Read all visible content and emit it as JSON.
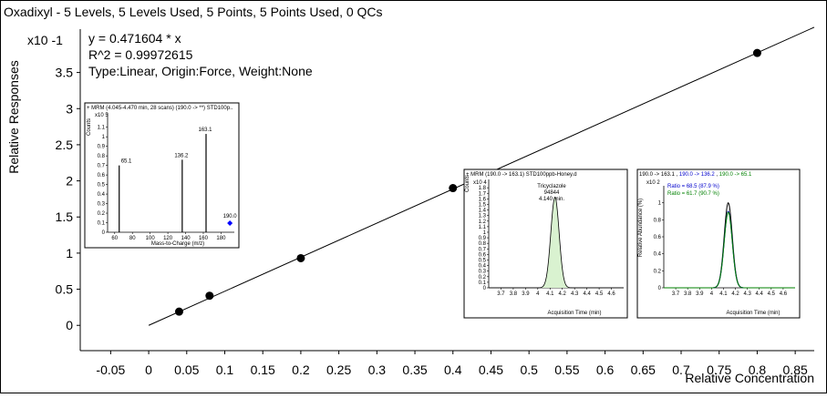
{
  "title": "Oxadixyl - 5 Levels, 5 Levels Used, 5 Points, 5 Points Used, 0 QCs",
  "equation": "y = 0.471604 * x",
  "r2": "R^2 = 0.99972615",
  "fit_type": "Type:Linear, Origin:Force, Weight:None",
  "colors": {
    "inset_green_fill": "#d9f2d0",
    "ratio_blue": "#0000cc",
    "ratio_green": "#008000",
    "marker_blue": "#0000ff"
  },
  "chart_data": [
    {
      "type": "scatter",
      "title": "",
      "xlabel": "Relative Concentration",
      "ylabel": "Relative Responses",
      "y_multiplier": "x10 -1",
      "x": [
        0.04,
        0.08,
        0.2,
        0.4,
        0.8
      ],
      "y": [
        0.19,
        0.41,
        0.93,
        1.9,
        3.77
      ],
      "fit": {
        "slope": 4.71604,
        "x_range": [
          0,
          0.875
        ]
      },
      "xlim": [
        -0.09,
        0.875
      ],
      "ylim": [
        -0.35,
        4.1
      ],
      "xticks": [
        -0.05,
        0,
        0.05,
        0.1,
        0.15,
        0.2,
        0.25,
        0.3,
        0.35,
        0.4,
        0.45,
        0.5,
        0.55,
        0.6,
        0.65,
        0.7,
        0.75,
        0.8,
        0.85
      ],
      "xtick_labels": [
        "-0.05",
        "0",
        "0.05",
        "0.1",
        "0.15",
        "0.2",
        "0.25",
        "0.3",
        "0.35",
        "0.4",
        "0.45",
        "0.5",
        "0.55",
        "0.6",
        "0.65",
        "0.7",
        "0.75",
        "0.8",
        "0.85"
      ],
      "yticks": [
        0,
        0.5,
        1,
        1.5,
        2,
        2.5,
        3,
        3.5
      ],
      "ytick_labels": [
        "0",
        "0.5",
        "1",
        "1.5",
        "2",
        "2.5",
        "3",
        "3.5"
      ]
    },
    {
      "type": "bar",
      "title": "+ MRM (4.045-4.470 min, 28 scans) (190.0 -> **) STD100p..",
      "ylabel": "Counts",
      "y_multiplier": "x10 5",
      "xlabel": "Mass-to-Charge (m/z)",
      "xlim": [
        52,
        195
      ],
      "ylim": [
        0,
        1.25
      ],
      "xticks": [
        60,
        80,
        100,
        120,
        140,
        160,
        180
      ],
      "xtick_labels": [
        "60",
        "80",
        "100",
        "120",
        "140",
        "160",
        "180"
      ],
      "yticks": [
        0,
        0.1,
        0.2,
        0.3,
        0.4,
        0.5,
        0.6,
        0.7,
        0.8,
        0.9,
        1,
        1.1
      ],
      "ytick_labels": [
        "0",
        "0.1",
        "0.2",
        "0.3",
        "0.4",
        "0.5",
        "0.6",
        "0.7",
        "0.8",
        "0.9",
        "1",
        "1.1"
      ],
      "peaks": [
        {
          "x": 65.1,
          "y": 0.7,
          "label": "65.1"
        },
        {
          "x": 136.2,
          "y": 0.76,
          "label": "136.2"
        },
        {
          "x": 163.1,
          "y": 1.03,
          "label": "163.1"
        }
      ],
      "precursor": {
        "x": 190.0,
        "label": "190.0"
      }
    },
    {
      "type": "area",
      "title": "+ MRM (190.0 -> 163.1) STD100ppb-Honey.d",
      "ylabel": "Counts",
      "y_multiplier": "x10 4",
      "xlabel": "Acquisition Time (min)",
      "xlim": [
        3.6,
        4.7
      ],
      "ylim": [
        0,
        1.95
      ],
      "xticks": [
        3.7,
        3.8,
        3.9,
        4,
        4.1,
        4.2,
        4.3,
        4.4,
        4.5,
        4.6
      ],
      "xtick_labels": [
        "3.7",
        "3.8",
        "3.9",
        "4",
        "4.1",
        "4.2",
        "4.3",
        "4.4",
        "4.5",
        "4.6"
      ],
      "yticks": [
        0,
        0.1,
        0.2,
        0.3,
        0.4,
        0.5,
        0.6,
        0.7,
        0.8,
        0.9,
        1,
        1.1,
        1.2,
        1.3,
        1.4,
        1.5,
        1.6,
        1.7,
        1.8
      ],
      "ytick_labels": [
        "0",
        "0.1",
        "0.2",
        "0.3",
        "0.4",
        "0.5",
        "0.6",
        "0.7",
        "0.8",
        "0.9",
        "1",
        "1.1",
        "1.2",
        "1.3",
        "1.4",
        "1.5",
        "1.6",
        "1.7",
        "1.8"
      ],
      "peak": {
        "center": 4.14,
        "height": 1.63,
        "sigma": 0.034
      },
      "annotations": [
        "Tricyclazole",
        "94844",
        "4.140 min."
      ]
    },
    {
      "type": "line",
      "title_parts": [
        {
          "text": "190.0 -> 163.1 , ",
          "color": "#000000"
        },
        {
          "text": "190.0 -> 136.2",
          "color": "#0000cc"
        },
        {
          "text": " , ",
          "color": "#000000"
        },
        {
          "text": "190.0 -> 65.1",
          "color": "#008000"
        }
      ],
      "ylabel": "Relative Abundance (%)",
      "y_multiplier": "x10 2",
      "xlabel": "Acquisition Time (min)",
      "xlim": [
        3.6,
        4.7
      ],
      "ylim": [
        0,
        1.2
      ],
      "xticks": [
        3.7,
        3.8,
        3.9,
        4,
        4.1,
        4.2,
        4.3,
        4.4,
        4.5,
        4.6
      ],
      "xtick_labels": [
        "3.7",
        "3.8",
        "3.9",
        "4",
        "4.1",
        "4.2",
        "4.3",
        "4.4",
        "4.5",
        "4.6"
      ],
      "yticks": [
        0,
        0.2,
        0.4,
        0.6,
        0.8,
        1
      ],
      "ytick_labels": [
        "0",
        "0.2",
        "0.4",
        "0.6",
        "0.8",
        "1"
      ],
      "series": [
        {
          "color": "#000000",
          "center": 4.14,
          "height": 1.0,
          "sigma": 0.034
        },
        {
          "color": "#0000cc",
          "center": 4.14,
          "height": 0.9,
          "sigma": 0.034
        },
        {
          "color": "#008000",
          "center": 4.14,
          "height": 0.89,
          "sigma": 0.034
        }
      ],
      "ratio_labels": [
        {
          "text": "Ratio = 68.5 (87.9 %)",
          "color": "#0000cc"
        },
        {
          "text": "Ratio = 61.7 (90.7 %)",
          "color": "#008000"
        }
      ]
    }
  ]
}
